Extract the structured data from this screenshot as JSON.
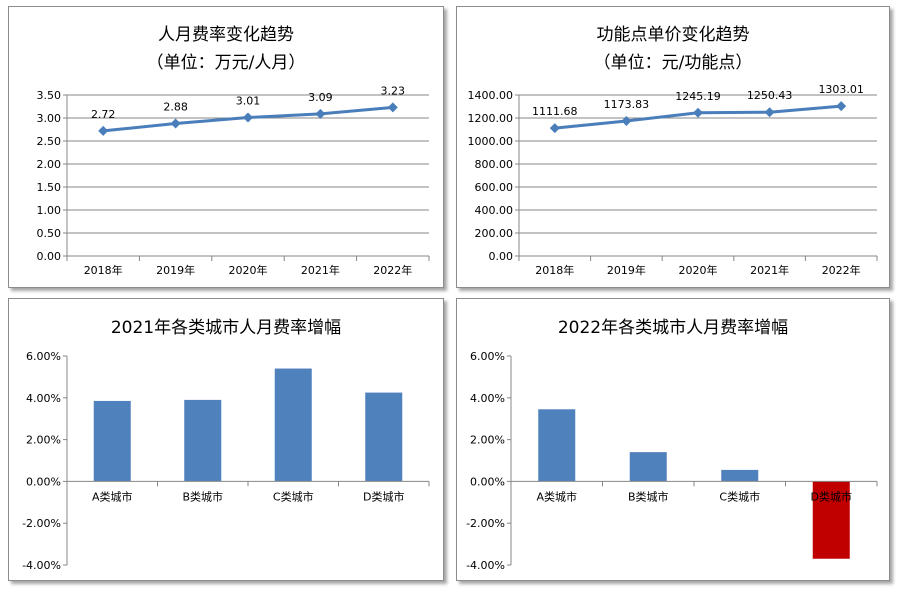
{
  "chart_data": [
    {
      "type": "line",
      "title": "人月费率变化趋势",
      "subtitle": "（单位：万元/人月）",
      "categories": [
        "2018年",
        "2019年",
        "2020年",
        "2021年",
        "2022年"
      ],
      "values": [
        2.72,
        2.88,
        3.01,
        3.09,
        3.23
      ],
      "value_labels": [
        "2.72",
        "2.88",
        "3.01",
        "3.09",
        "3.23"
      ],
      "ylim": [
        0,
        3.5
      ],
      "yticks": [
        "0.00",
        "0.50",
        "1.00",
        "1.50",
        "2.00",
        "2.50",
        "3.00",
        "3.50"
      ],
      "grid": true,
      "color": "#4a7ebb"
    },
    {
      "type": "line",
      "title": "功能点单价变化趋势",
      "subtitle": "（单位：元/功能点）",
      "categories": [
        "2018年",
        "2019年",
        "2020年",
        "2021年",
        "2022年"
      ],
      "values": [
        1111.68,
        1173.83,
        1245.19,
        1250.43,
        1303.01
      ],
      "value_labels": [
        "1111.68",
        "1173.83",
        "1245.19",
        "1250.43",
        "1303.01"
      ],
      "ylim": [
        0,
        1400
      ],
      "yticks": [
        "0.00",
        "200.00",
        "400.00",
        "600.00",
        "800.00",
        "1000.00",
        "1200.00",
        "1400.00"
      ],
      "grid": true,
      "color": "#4a7ebb"
    },
    {
      "type": "bar",
      "title": "2021年各类城市人月费率增幅",
      "categories": [
        "A类城市",
        "B类城市",
        "C类城市",
        "D类城市"
      ],
      "values": [
        3.85,
        3.9,
        5.4,
        4.25
      ],
      "ylim": [
        -4,
        6
      ],
      "yticks": [
        "-4.00%",
        "-2.00%",
        "0.00%",
        "2.00%",
        "4.00%",
        "6.00%"
      ],
      "grid": false,
      "colors": [
        "#4f81bd",
        "#4f81bd",
        "#4f81bd",
        "#4f81bd"
      ]
    },
    {
      "type": "bar",
      "title": "2022年各类城市人月费率增幅",
      "categories": [
        "A类城市",
        "B类城市",
        "C类城市",
        "D类城市"
      ],
      "values": [
        3.45,
        1.4,
        0.55,
        -3.7
      ],
      "ylim": [
        -4,
        6
      ],
      "yticks": [
        "-4.00%",
        "-2.00%",
        "0.00%",
        "2.00%",
        "4.00%",
        "6.00%"
      ],
      "grid": false,
      "colors": [
        "#4f81bd",
        "#4f81bd",
        "#4f81bd",
        "#c00000"
      ]
    }
  ]
}
